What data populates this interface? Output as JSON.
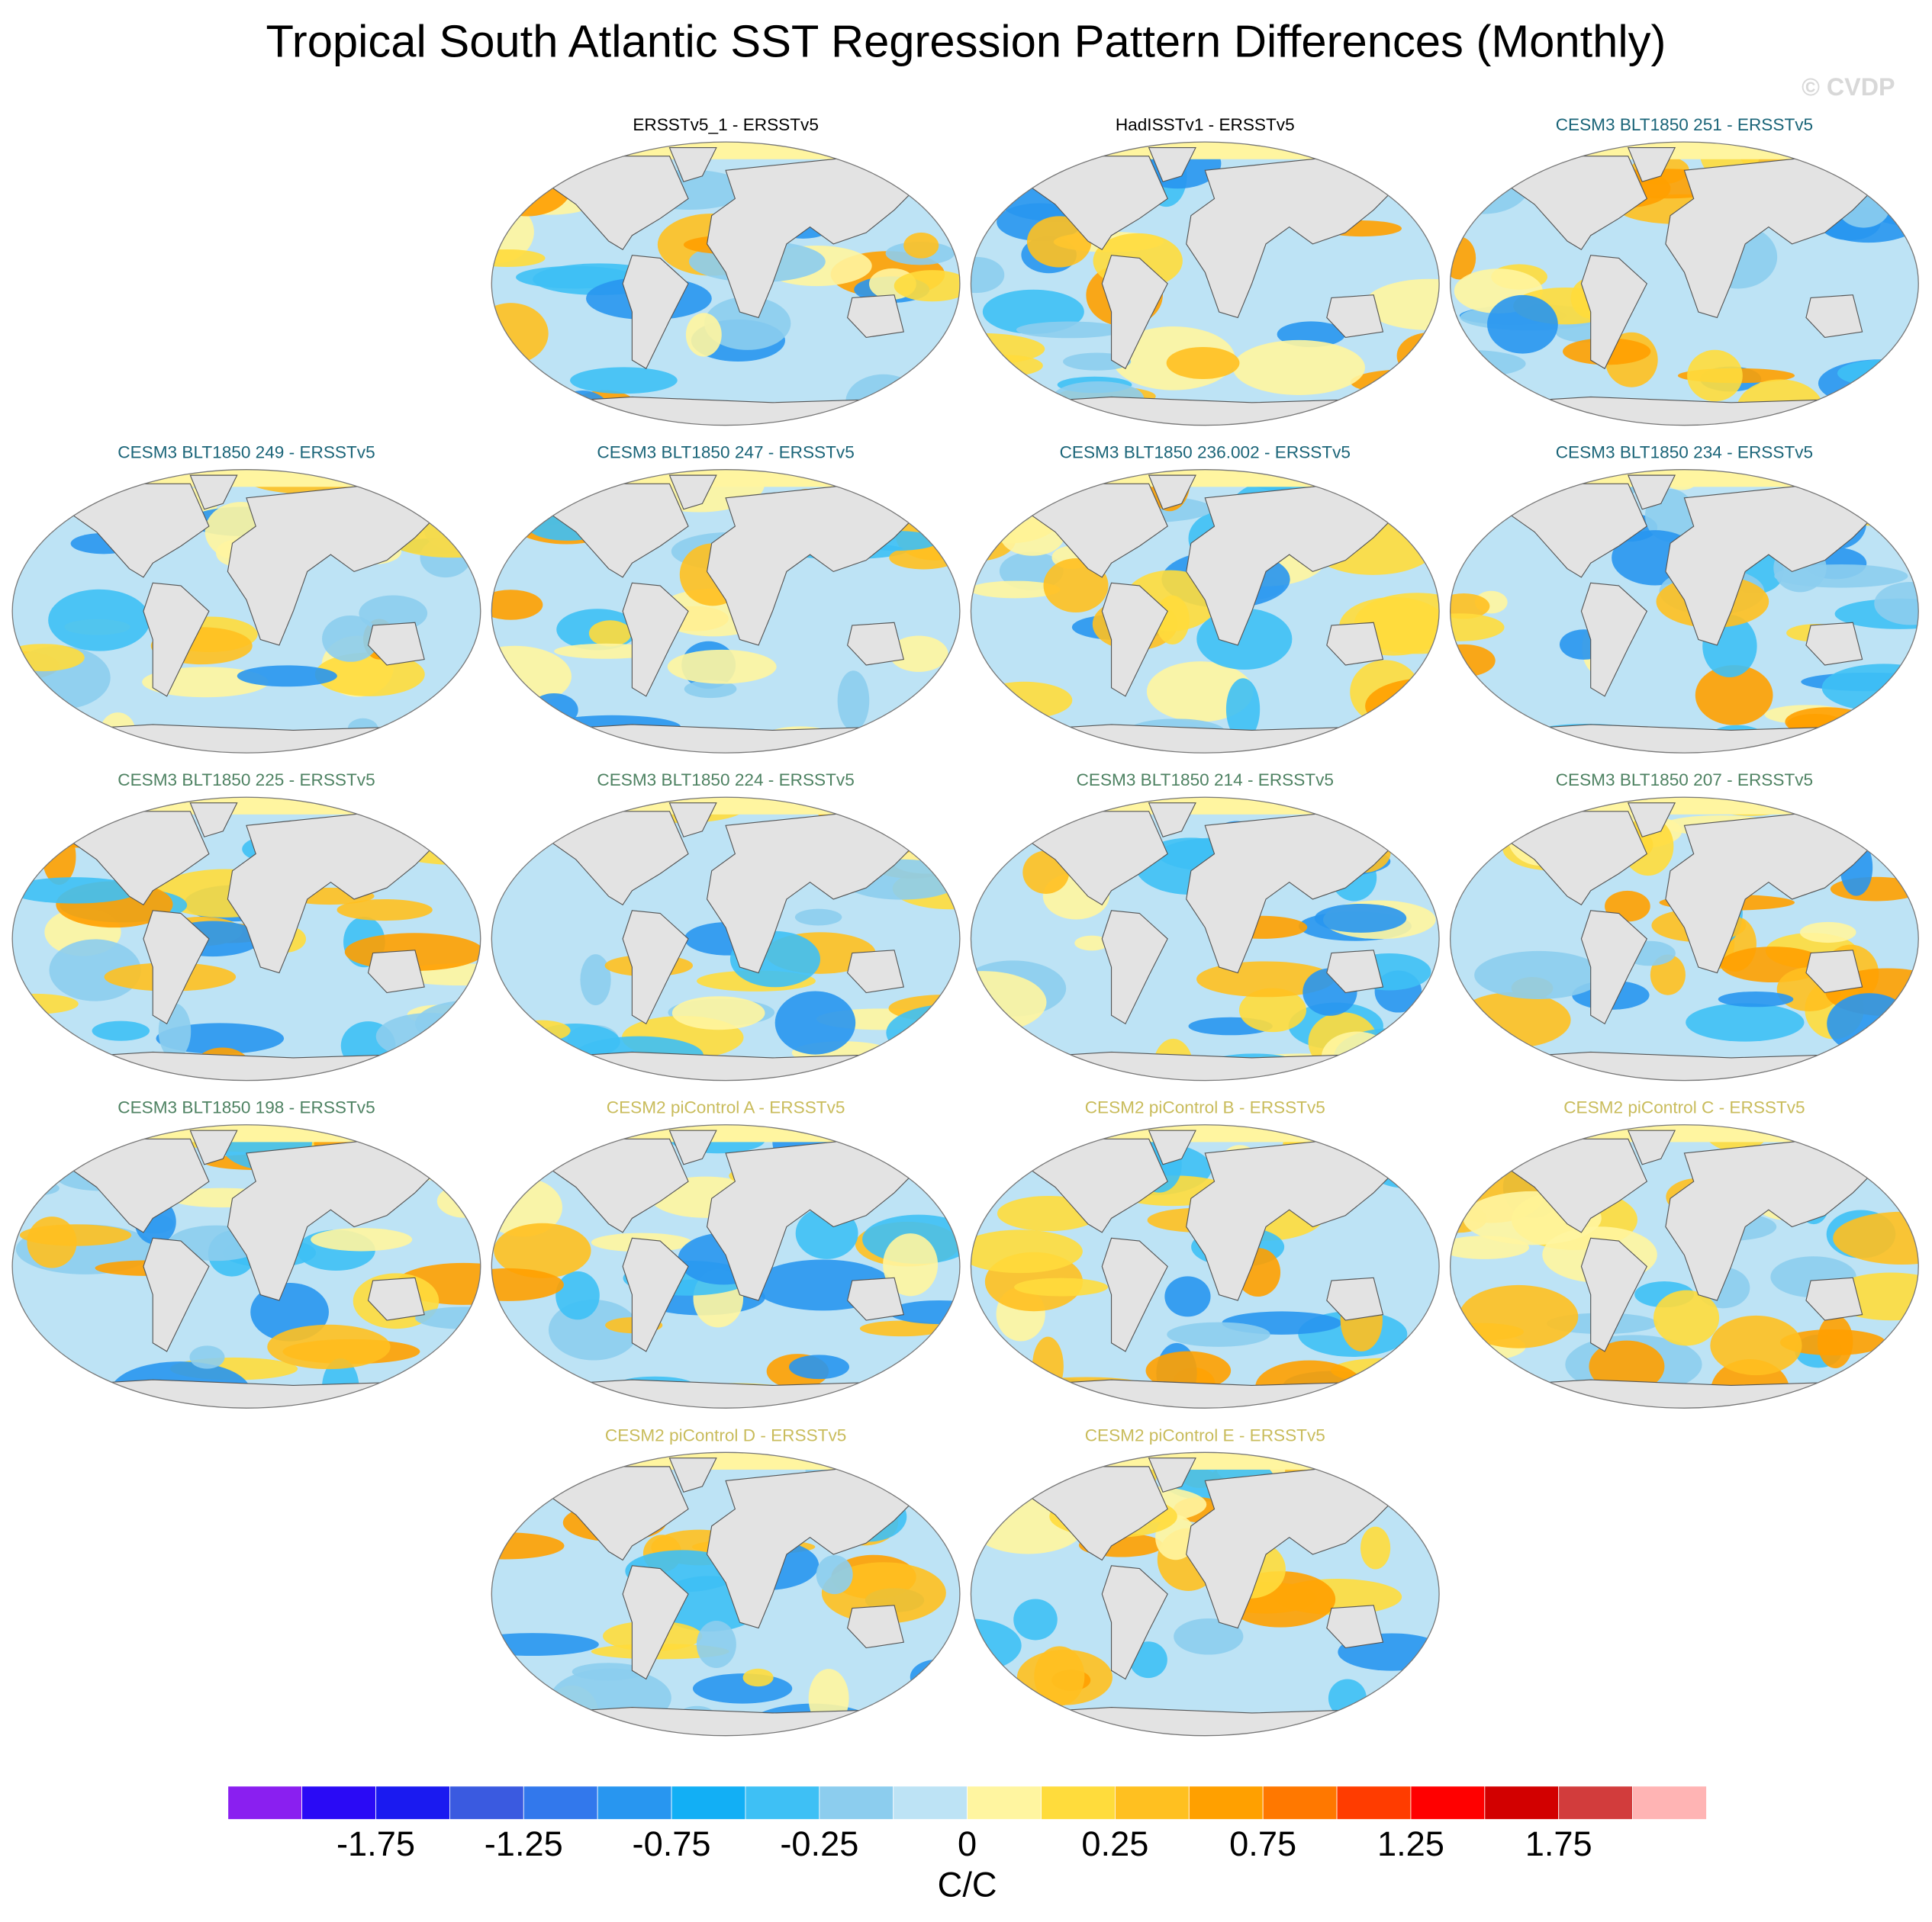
{
  "title": "Tropical South Atlantic SST Regression Pattern Differences (Monthly)",
  "watermark": "© CVDP",
  "panels": [
    {
      "title": "ERSSTv5_1 - ERSSTv5",
      "color": "#000000"
    },
    {
      "title": "HadISSTv1 - ERSSTv5",
      "color": "#000000"
    },
    {
      "title": "CESM3 BLT1850 251 - ERSSTv5",
      "color": "#1a6478"
    },
    {
      "title": "CESM3 BLT1850 249 - ERSSTv5",
      "color": "#1a6478"
    },
    {
      "title": "CESM3 BLT1850 247 - ERSSTv5",
      "color": "#1a6478"
    },
    {
      "title": "CESM3 BLT1850 236.002 - ERSSTv5",
      "color": "#1a6478"
    },
    {
      "title": "CESM3 BLT1850 234 - ERSSTv5",
      "color": "#1a6478"
    },
    {
      "title": "CESM3 BLT1850 225 - ERSSTv5",
      "color": "#4e8262"
    },
    {
      "title": "CESM3 BLT1850 224 - ERSSTv5",
      "color": "#4e8262"
    },
    {
      "title": "CESM3 BLT1850 214 - ERSSTv5",
      "color": "#4e8262"
    },
    {
      "title": "CESM3 BLT1850 207 - ERSSTv5",
      "color": "#4e8262"
    },
    {
      "title": "CESM3 BLT1850 198 - ERSSTv5",
      "color": "#4e8262"
    },
    {
      "title": "CESM2 piControl A - ERSSTv5",
      "color": "#c9bc5c"
    },
    {
      "title": "CESM2 piControl B - ERSSTv5",
      "color": "#c9bc5c"
    },
    {
      "title": "CESM2 piControl C - ERSSTv5",
      "color": "#c9bc5c"
    },
    {
      "title": "CESM2 piControl D - ERSSTv5",
      "color": "#c9bc5c"
    },
    {
      "title": "CESM2 piControl E - ERSSTv5",
      "color": "#c9bc5c"
    }
  ],
  "colorbar": {
    "colors": [
      "#8a1ff0",
      "#2a0af5",
      "#1a1af0",
      "#3a5ae0",
      "#3278ec",
      "#2896f0",
      "#12aff5",
      "#3ec0f5",
      "#8ccdee",
      "#bde3f5",
      "#fff5a0",
      "#ffdc3c",
      "#ffc020",
      "#ffa000",
      "#ff7800",
      "#ff3c00",
      "#ff0000",
      "#d20000",
      "#d23c3c",
      "#ffb4b4"
    ],
    "labels": [
      -1.75,
      -1.25,
      -0.75,
      -0.25,
      0,
      0.25,
      0.75,
      1.25,
      1.75
    ],
    "unit": "C/C"
  }
}
